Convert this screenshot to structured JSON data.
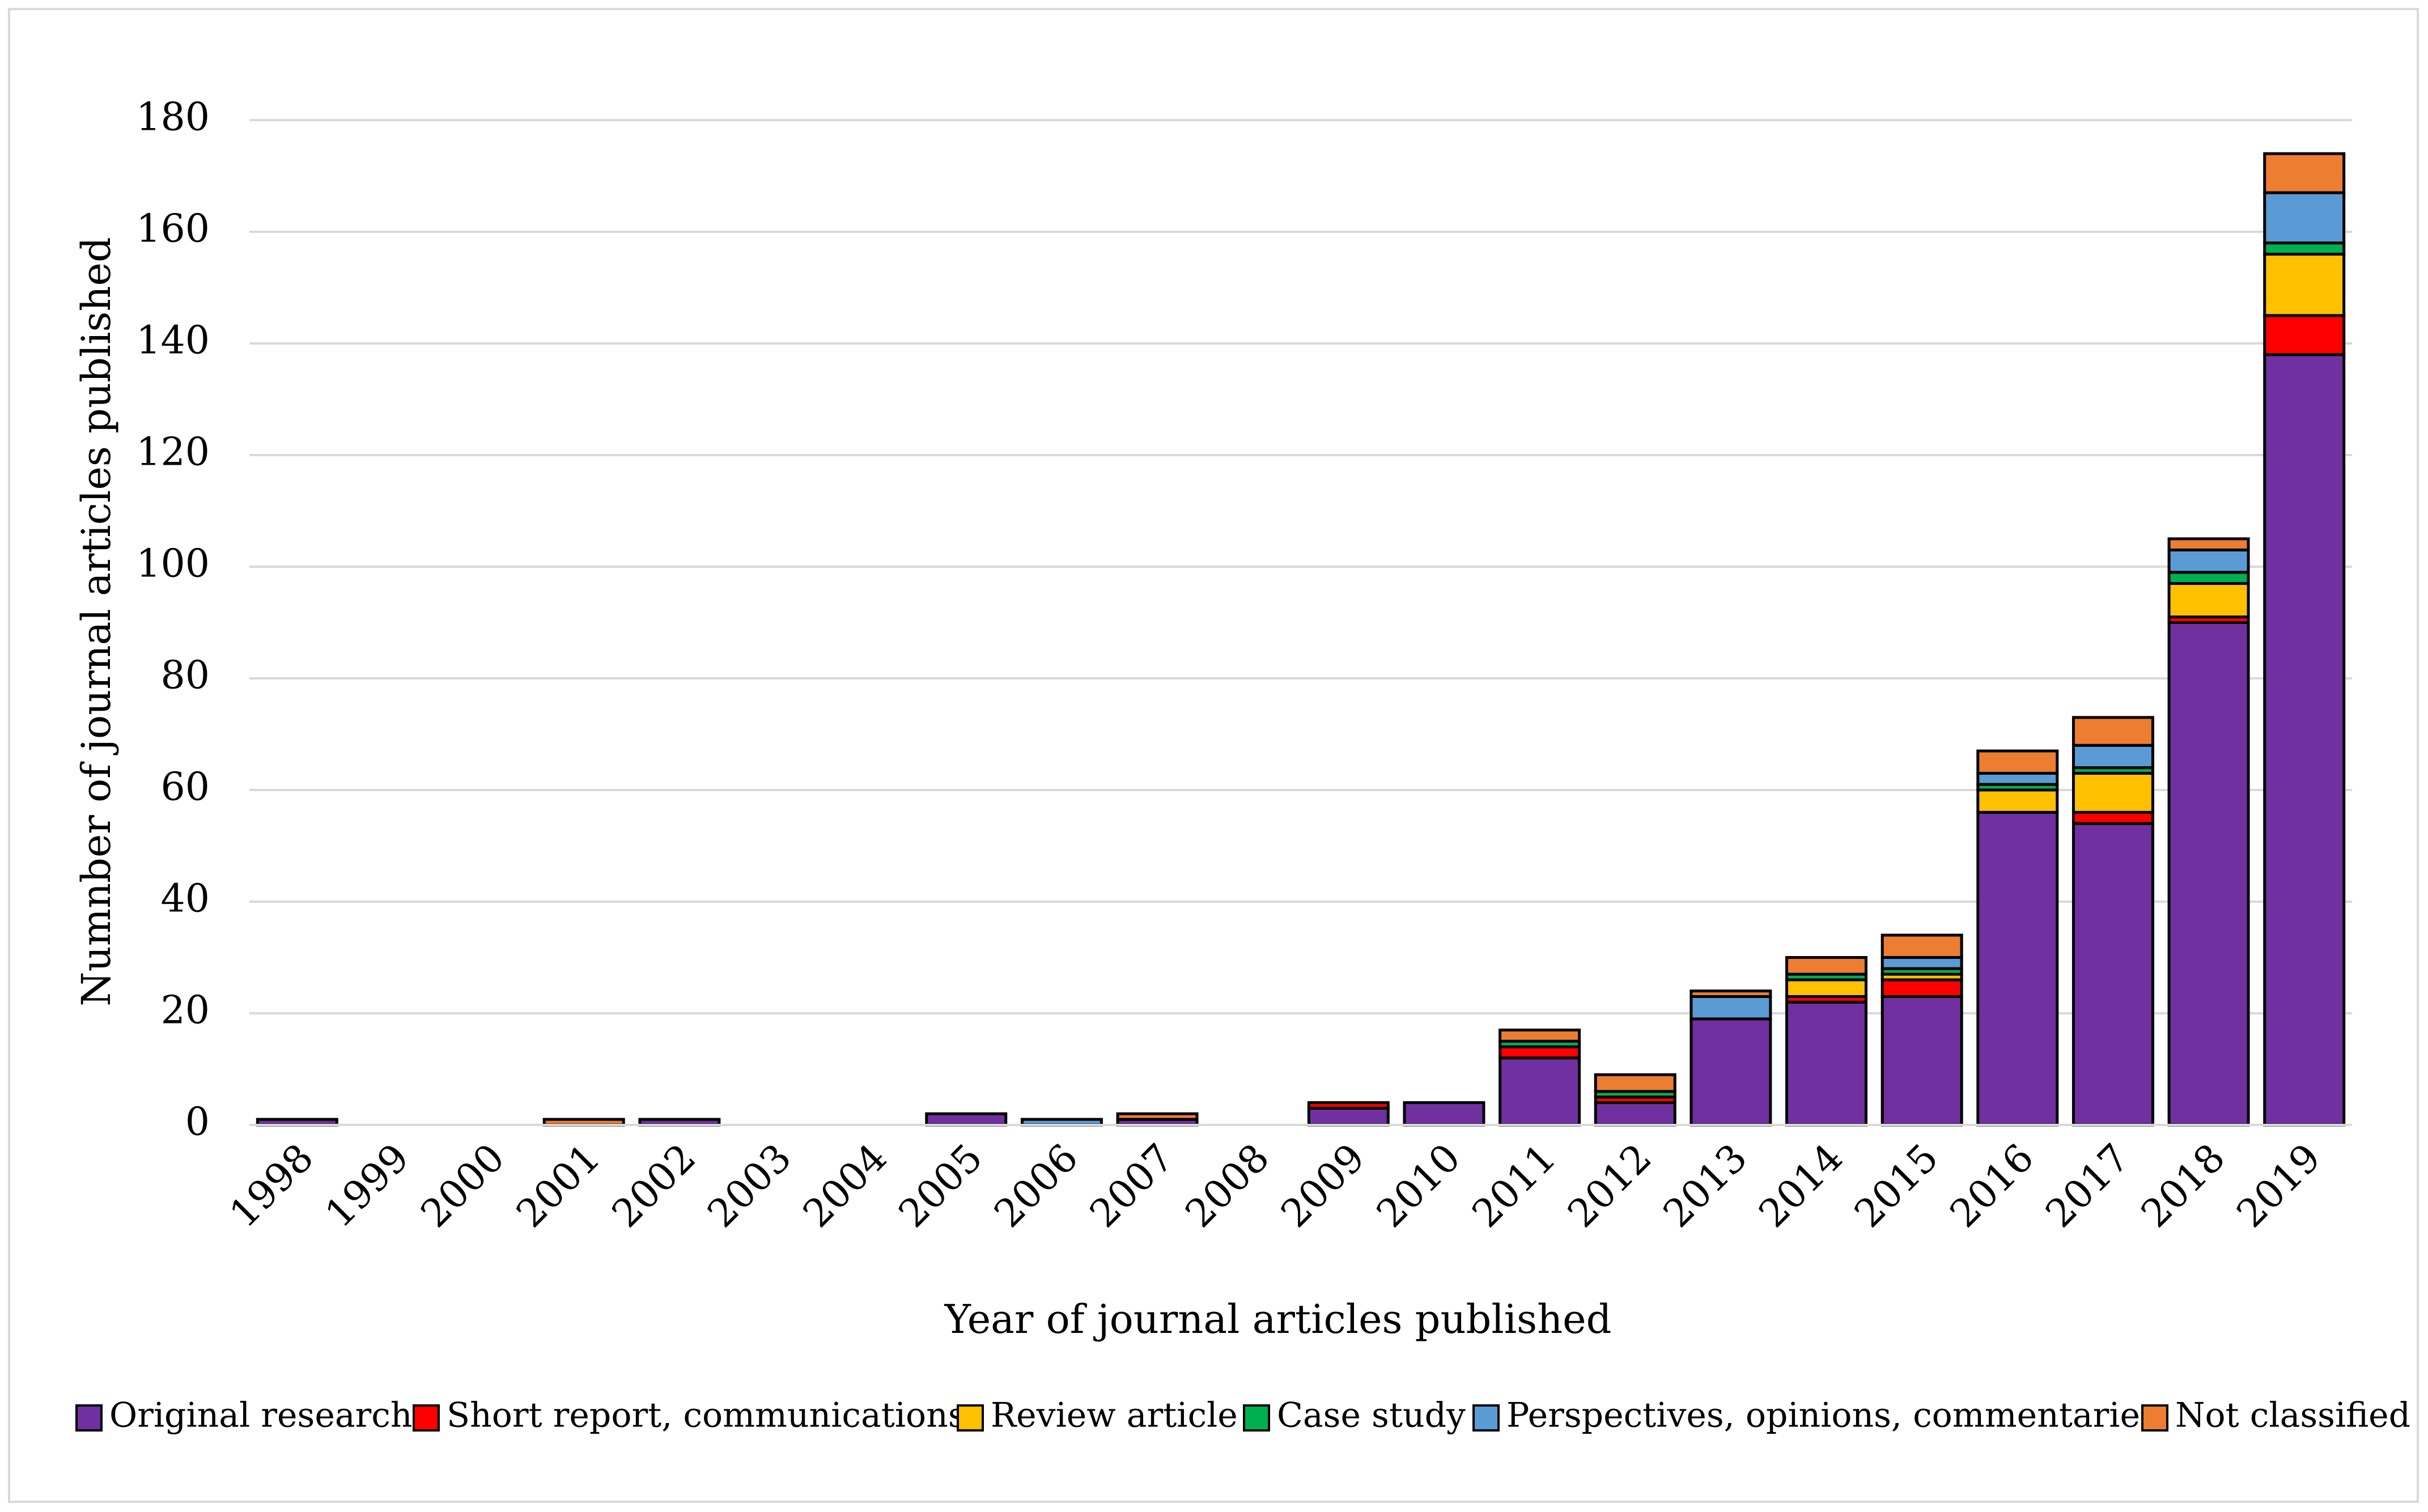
{
  "chart_data": {
    "type": "bar",
    "stacked": true,
    "title": "",
    "xlabel": "Year of journal articles published",
    "ylabel": "Numnber of journal articles published",
    "ylim": [
      0,
      180
    ],
    "yticks": [
      0,
      20,
      40,
      60,
      80,
      100,
      120,
      140,
      160,
      180
    ],
    "grid": true,
    "legend_position": "bottom",
    "categories": [
      "1998",
      "1999",
      "2000",
      "2001",
      "2002",
      "2003",
      "2004",
      "2005",
      "2006",
      "2007",
      "2008",
      "2009",
      "2010",
      "2011",
      "2012",
      "2013",
      "2014",
      "2015",
      "2016",
      "2017",
      "2018",
      "2019"
    ],
    "series": [
      {
        "name": "Original research",
        "color": "#7030a0",
        "values": [
          1,
          0,
          0,
          0,
          1,
          0,
          0,
          2,
          0,
          1,
          0,
          3,
          4,
          12,
          4,
          19,
          22,
          23,
          56,
          54,
          90,
          138
        ]
      },
      {
        "name": "Short report, communications",
        "color": "#ff0000",
        "values": [
          0,
          0,
          0,
          0,
          0,
          0,
          0,
          0,
          0,
          0,
          0,
          1,
          0,
          2,
          1,
          0,
          1,
          3,
          0,
          2,
          1,
          7
        ]
      },
      {
        "name": "Review article",
        "color": "#ffc000",
        "values": [
          0,
          0,
          0,
          0,
          0,
          0,
          0,
          0,
          0,
          0,
          0,
          0,
          0,
          0,
          0,
          0,
          3,
          1,
          4,
          7,
          6,
          11
        ]
      },
      {
        "name": "Case study",
        "color": "#00b050",
        "values": [
          0,
          0,
          0,
          0,
          0,
          0,
          0,
          0,
          0,
          0,
          0,
          0,
          0,
          1,
          1,
          0,
          1,
          1,
          1,
          1,
          2,
          2
        ]
      },
      {
        "name": "Perspectives, opinions, commentaries",
        "color": "#5b9bd5",
        "values": [
          0,
          0,
          0,
          0,
          0,
          0,
          0,
          0,
          1,
          0,
          0,
          0,
          0,
          0,
          0,
          4,
          0,
          2,
          2,
          4,
          4,
          9
        ]
      },
      {
        "name": "Not classified",
        "color": "#ed7d31",
        "values": [
          0,
          0,
          0,
          1,
          0,
          0,
          0,
          0,
          0,
          1,
          0,
          0,
          0,
          2,
          3,
          1,
          3,
          4,
          4,
          5,
          2,
          7
        ]
      }
    ]
  }
}
